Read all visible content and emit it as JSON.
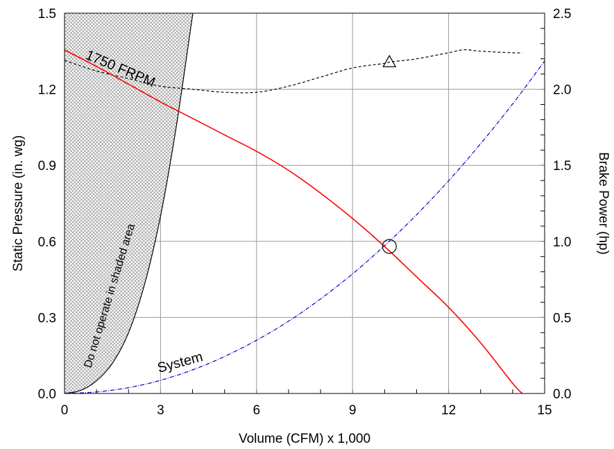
{
  "chart_data": {
    "type": "line",
    "xlabel": "Volume (CFM) x 1,000",
    "ylabel": "Static Pressure (in. wg)",
    "y2label": "Brake Power (hp)",
    "xlim": [
      0,
      15
    ],
    "ylim": [
      0,
      1.5
    ],
    "y2lim": [
      0,
      2.5
    ],
    "x_ticks": [
      "0",
      "3",
      "6",
      "9",
      "12",
      "15"
    ],
    "y_ticks": [
      "0.0",
      "0.3",
      "0.6",
      "0.9",
      "1.2",
      "1.5"
    ],
    "y2_ticks": [
      "0.0",
      "0.5",
      "1.0",
      "1.5",
      "2.0",
      "2.5"
    ],
    "grid": true,
    "colors": {
      "fan_curve": "#ff0000",
      "system_curve": "#0000cc",
      "brake_power_curve": "#000000",
      "stall_boundary": "#000000",
      "shaded_area": "#d9d9d9"
    },
    "annotations": {
      "rpm": "1750   FRPM",
      "system": "System",
      "shaded": "Do  not operate  in  shaded   area"
    },
    "series": [
      {
        "axis": "left",
        "x": [
          0,
          1,
          2,
          3,
          4,
          5,
          6,
          7,
          8,
          9,
          10,
          11,
          12,
          13,
          14,
          14.3
        ],
        "y": [
          1.355,
          1.29,
          1.22,
          1.15,
          1.085,
          1.02,
          0.955,
          0.88,
          0.79,
          0.69,
          0.58,
          0.46,
          0.34,
          0.2,
          0.04,
          0.0
        ]
      },
      {
        "axis": "left",
        "x": [
          0,
          1,
          2,
          3,
          4,
          5,
          6,
          7,
          8,
          9,
          10,
          11,
          12,
          13,
          14,
          15
        ],
        "y": [
          0.0,
          0.006,
          0.023,
          0.052,
          0.093,
          0.146,
          0.21,
          0.285,
          0.373,
          0.472,
          0.583,
          0.705,
          0.839,
          0.985,
          1.142,
          1.311
        ]
      },
      {
        "axis": "right",
        "x": [
          0,
          1,
          2,
          3,
          4,
          5,
          6,
          7,
          8,
          9,
          10,
          10.2,
          11,
          12,
          12.5,
          13,
          14,
          14.3
        ],
        "y": [
          2.19,
          2.12,
          2.07,
          2.02,
          2.0,
          1.98,
          1.98,
          2.02,
          2.08,
          2.14,
          2.17,
          2.18,
          2.2,
          2.24,
          2.26,
          2.25,
          2.24,
          2.24
        ]
      },
      {
        "axis": "left",
        "x": [
          0,
          0.5,
          1,
          1.5,
          2,
          2.5,
          3,
          3.5,
          4,
          4.05
        ],
        "y": [
          0.0,
          0.012,
          0.05,
          0.12,
          0.24,
          0.43,
          0.7,
          1.06,
          1.49,
          1.5
        ]
      }
    ],
    "markers": [
      {
        "shape": "circle",
        "x": 10.15,
        "y": 0.58,
        "axis": "left"
      },
      {
        "shape": "triangle",
        "x": 10.15,
        "y": 2.18,
        "axis": "right"
      }
    ]
  }
}
